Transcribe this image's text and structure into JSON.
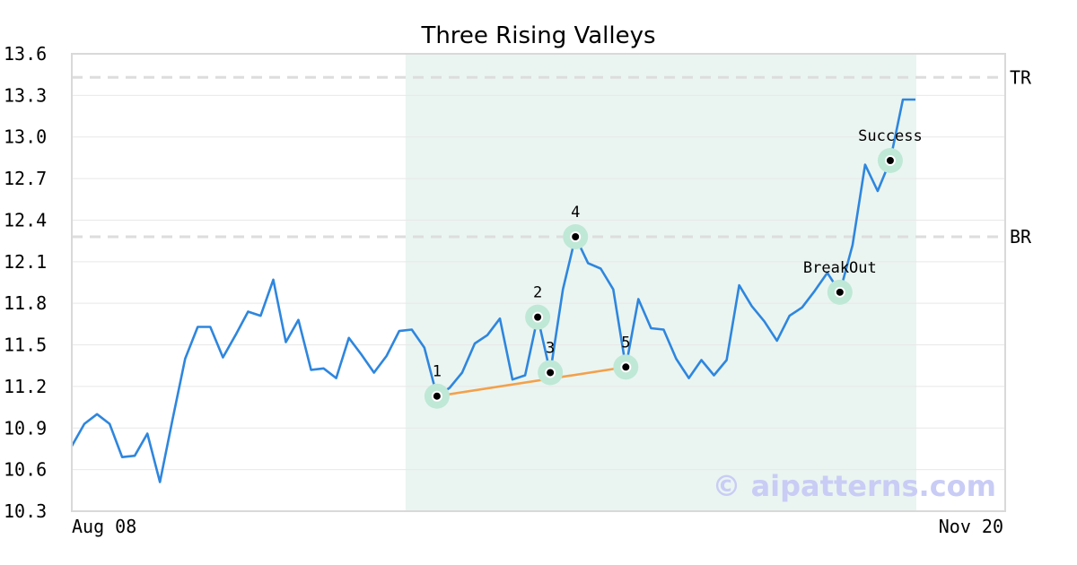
{
  "chart_data": {
    "type": "line",
    "title": "Three Rising Valleys",
    "ylim": [
      10.3,
      13.6
    ],
    "y_ticks": [
      "13.6",
      "13.3",
      "13.0",
      "12.7",
      "12.4",
      "12.1",
      "11.8",
      "11.5",
      "11.2",
      "10.9",
      "10.6",
      "10.3"
    ],
    "x_labels": {
      "start": "Aug 08",
      "end": "Nov 20"
    },
    "grid": true,
    "series": [
      {
        "color": "#2e86de",
        "values": [
          10.77,
          10.93,
          11.0,
          10.93,
          10.69,
          10.7,
          10.86,
          10.51,
          10.96,
          11.4,
          11.63,
          11.63,
          11.41,
          11.57,
          11.74,
          11.71,
          11.97,
          11.52,
          11.68,
          11.32,
          11.33,
          11.26,
          11.55,
          11.43,
          11.3,
          11.42,
          11.6,
          11.61,
          11.48,
          11.13,
          11.19,
          11.3,
          11.51,
          11.57,
          11.69,
          11.25,
          11.28,
          11.7,
          11.3,
          11.9,
          12.28,
          12.09,
          12.05,
          11.9,
          11.34,
          11.83,
          11.62,
          11.61,
          11.4,
          11.26,
          11.39,
          11.28,
          11.39,
          11.93,
          11.78,
          11.67,
          11.53,
          11.71,
          11.77,
          11.89,
          12.02,
          11.88,
          12.22,
          12.8,
          12.61,
          12.83,
          13.27,
          13.27
        ]
      }
    ],
    "highlight_range": {
      "start_index": 27,
      "end_index": 67,
      "color": "#eaf5f1"
    },
    "levels": [
      {
        "label": "TR",
        "value": 13.43
      },
      {
        "label": "BR",
        "value": 12.28
      }
    ],
    "points": [
      {
        "label": "1",
        "index": 29,
        "value": 11.13
      },
      {
        "label": "2",
        "index": 37,
        "value": 11.7
      },
      {
        "label": "3",
        "index": 38,
        "value": 11.3
      },
      {
        "label": "4",
        "index": 40,
        "value": 12.28
      },
      {
        "label": "5",
        "index": 44,
        "value": 11.34
      },
      {
        "label": "BreakOut",
        "index": 61,
        "value": 11.88
      },
      {
        "label": "Success",
        "index": 65,
        "value": 12.83
      }
    ],
    "trendline": {
      "from_index": 29,
      "from_value": 11.13,
      "to_index": 44,
      "to_value": 11.34,
      "color": "#f4a04a"
    }
  },
  "watermark": "© aipatterns.com",
  "colors": {
    "line": "#2e86de",
    "highlight": "#eaf5f1",
    "marker_halo": "#bfe8d6",
    "trendline": "#f4a04a",
    "level_line": "#dddddd",
    "watermark": "#c9ccf5"
  }
}
